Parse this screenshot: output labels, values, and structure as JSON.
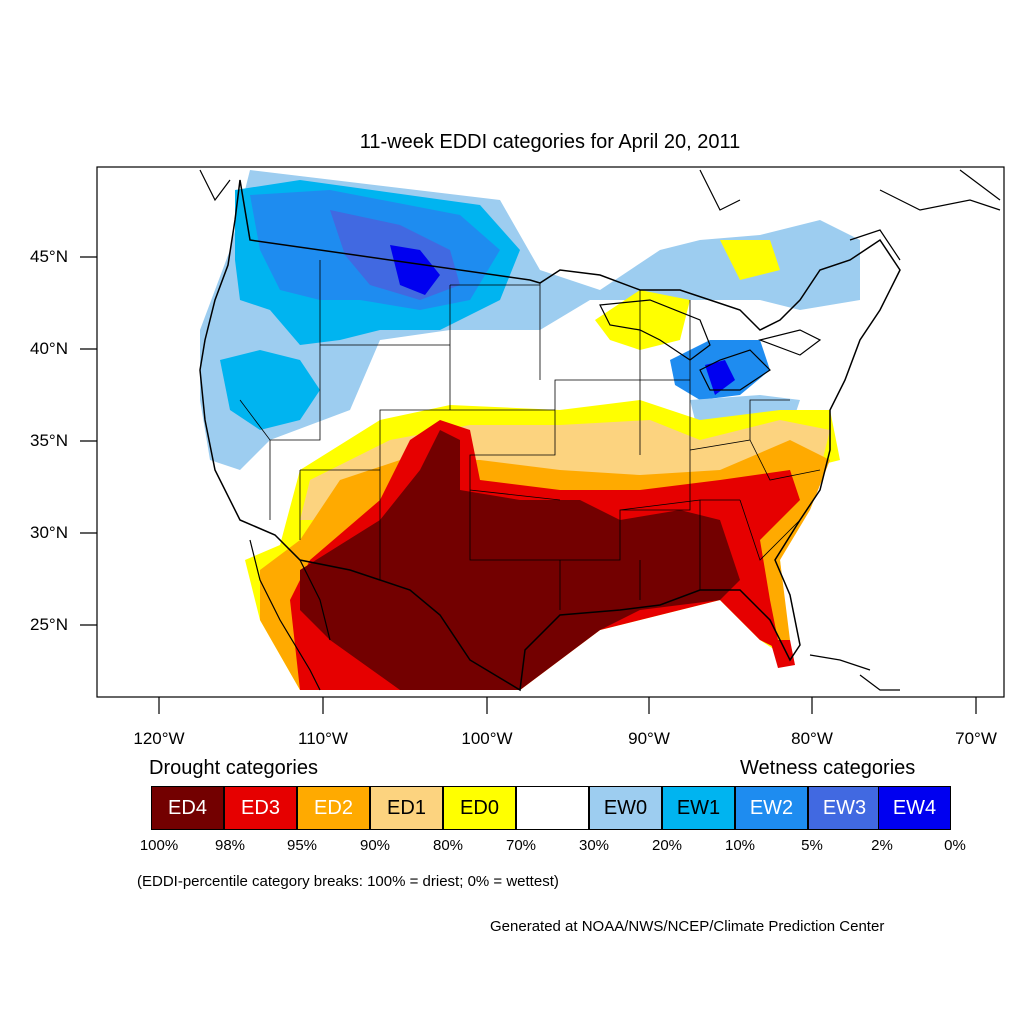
{
  "title": "11-week EDDI categories for April 20, 2011",
  "axes": {
    "latitude_ticks": [
      "45°N",
      "40°N",
      "35°N",
      "30°N",
      "25°N"
    ],
    "longitude_ticks": [
      "120°W",
      "110°W",
      "100°W",
      "90°W",
      "80°W",
      "70°W"
    ]
  },
  "legend": {
    "drought_heading": "Drought categories",
    "wetness_heading": "Wetness categories",
    "categories": [
      {
        "label": "ED4",
        "color": "#730000",
        "text_color": "#ffffff"
      },
      {
        "label": "ED3",
        "color": "#e60000",
        "text_color": "#ffffff"
      },
      {
        "label": "ED2",
        "color": "#ffaa00",
        "text_color": "#ffffff"
      },
      {
        "label": "ED1",
        "color": "#fcd37f",
        "text_color": "#000000"
      },
      {
        "label": "ED0",
        "color": "#ffff00",
        "text_color": "#000000"
      },
      {
        "label": "",
        "color": "#ffffff",
        "text_color": "#000000"
      },
      {
        "label": "EW0",
        "color": "#9dcdf0",
        "text_color": "#000000"
      },
      {
        "label": "EW1",
        "color": "#00b4f0",
        "text_color": "#000000"
      },
      {
        "label": "EW2",
        "color": "#1e8cf0",
        "text_color": "#ffffff"
      },
      {
        "label": "EW3",
        "color": "#4169e1",
        "text_color": "#ffffff"
      },
      {
        "label": "EW4",
        "color": "#0000f0",
        "text_color": "#ffffff"
      }
    ],
    "breaks": [
      "100%",
      "98%",
      "95%",
      "90%",
      "80%",
      "70%",
      "30%",
      "20%",
      "10%",
      "5%",
      "2%",
      "0%"
    ]
  },
  "note": "(EDDI-percentile category breaks: 100% = driest; 0% = wettest)",
  "credit": "Generated at NOAA/NWS/NCEP/Climate Prediction Center",
  "colors": {
    "ed4": "#730000",
    "ed3": "#e60000",
    "ed2": "#ffaa00",
    "ed1": "#fcd37f",
    "ed0": "#ffff00",
    "ew0": "#9dcdf0",
    "ew1": "#00b4f0",
    "ew2": "#1e8cf0",
    "ew3": "#4169e1",
    "ew4": "#0000f0"
  }
}
